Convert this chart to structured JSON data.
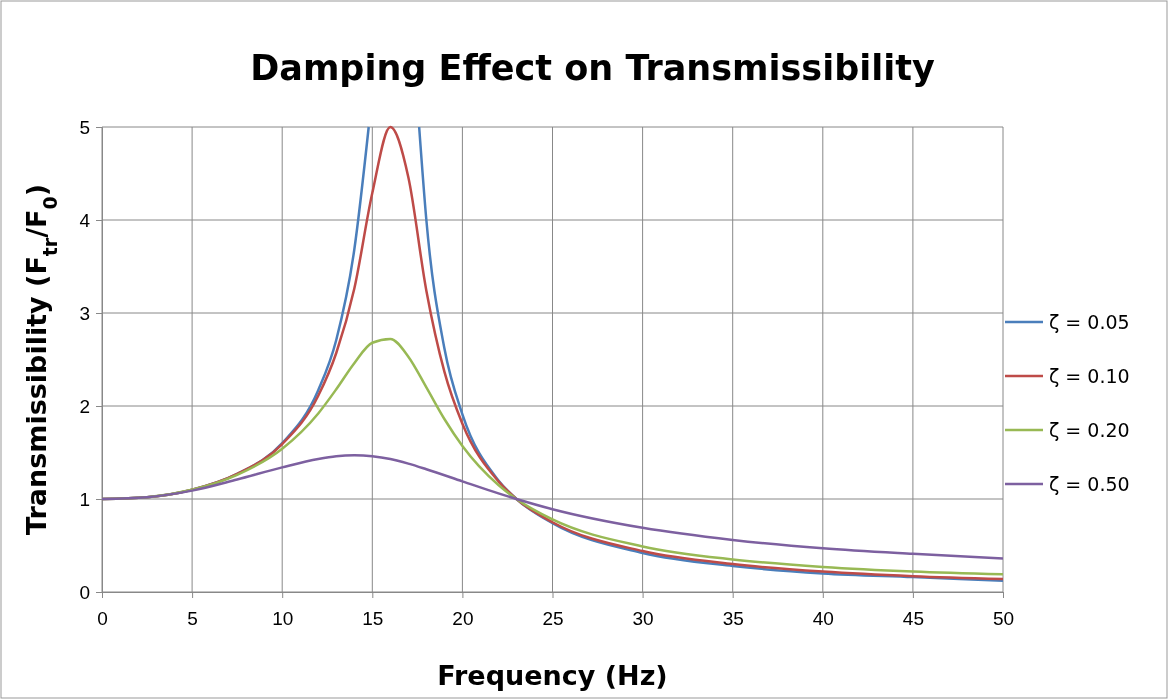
{
  "chart_data": {
    "type": "line",
    "title": "Damping Effect on Transmissibility",
    "xlabel": "Frequency (Hz)",
    "ylabel": "Transmissibility (F$_{tr}$/F$_{0}$)",
    "xlim": [
      0,
      50
    ],
    "xticks": [
      0,
      5,
      10,
      15,
      20,
      25,
      30,
      35,
      40,
      45,
      50
    ],
    "ylim": [
      0,
      5
    ],
    "yticks": [
      0,
      1,
      2,
      3,
      4,
      5
    ],
    "grid": true,
    "legend": "right",
    "marker": "none",
    "line_style": "solid",
    "series": [
      {
        "name": "ζ = 0.05",
        "color": "#4a7ebb",
        "x": [
          0,
          2.5,
          5,
          7.5,
          10,
          12,
          13,
          14,
          14.8,
          16,
          17.6,
          18,
          19,
          20,
          22,
          23,
          25,
          30,
          35,
          40,
          45,
          50
        ],
        "values": [
          1,
          1.02,
          1.1,
          1.27,
          1.6,
          2.17,
          2.71,
          3.68,
          5,
          null,
          5,
          4.0,
          2.62,
          1.91,
          1.2,
          1.0,
          0.74,
          0.42,
          0.28,
          0.2,
          0.16,
          0.12
        ]
      },
      {
        "name": "ζ = 0.10",
        "color": "#be4b48",
        "x": [
          0,
          2.5,
          5,
          7.5,
          10,
          12,
          13,
          14,
          15,
          16,
          17,
          18,
          19,
          20,
          22,
          23,
          25,
          30,
          35,
          40,
          45,
          50
        ],
        "values": [
          1,
          1.02,
          1.1,
          1.27,
          1.59,
          2.11,
          2.57,
          3.26,
          4.29,
          5,
          4.46,
          3.24,
          2.37,
          1.81,
          1.19,
          1.0,
          0.75,
          0.44,
          0.3,
          0.22,
          0.17,
          0.14
        ]
      },
      {
        "name": "ζ = 0.20",
        "color": "#98b954",
        "x": [
          0,
          2.5,
          5,
          7.5,
          10,
          12,
          13,
          14,
          15,
          16,
          17,
          18,
          19,
          20,
          22,
          23,
          25,
          30,
          35,
          40,
          45,
          50
        ],
        "values": [
          1,
          1.02,
          1.1,
          1.26,
          1.54,
          1.92,
          2.18,
          2.46,
          2.68,
          2.72,
          2.53,
          2.2,
          1.86,
          1.57,
          1.15,
          1.0,
          0.78,
          0.49,
          0.35,
          0.27,
          0.22,
          0.19
        ]
      },
      {
        "name": "ζ = 0.50",
        "color": "#7d60a0",
        "x": [
          0,
          2.5,
          5,
          7.5,
          10,
          12,
          13,
          14,
          15,
          16,
          17,
          18,
          20,
          22,
          23,
          25,
          30,
          35,
          40,
          45,
          50
        ],
        "values": [
          1,
          1.02,
          1.09,
          1.21,
          1.34,
          1.43,
          1.46,
          1.47,
          1.46,
          1.43,
          1.38,
          1.32,
          1.19,
          1.06,
          1.0,
          0.89,
          0.69,
          0.56,
          0.47,
          0.41,
          0.36
        ]
      }
    ]
  }
}
